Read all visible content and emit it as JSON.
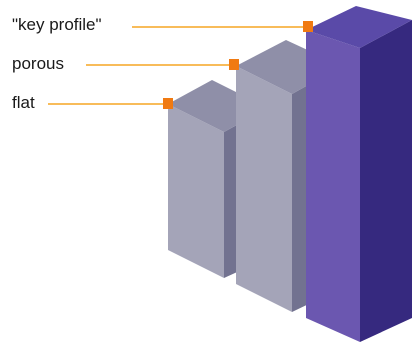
{
  "labels": {
    "key_profile": "\"key profile\"",
    "porous": "porous",
    "flat": "flat"
  },
  "colors": {
    "leader_line": "#f5a623",
    "marker": "#f07a12",
    "gray_top": "#8f8fa8",
    "gray_front": "#a4a4b8",
    "gray_side": "#727290",
    "purple_top": "#5a4aa8",
    "purple_front": "#6b57b0",
    "purple_side": "#36297f"
  }
}
